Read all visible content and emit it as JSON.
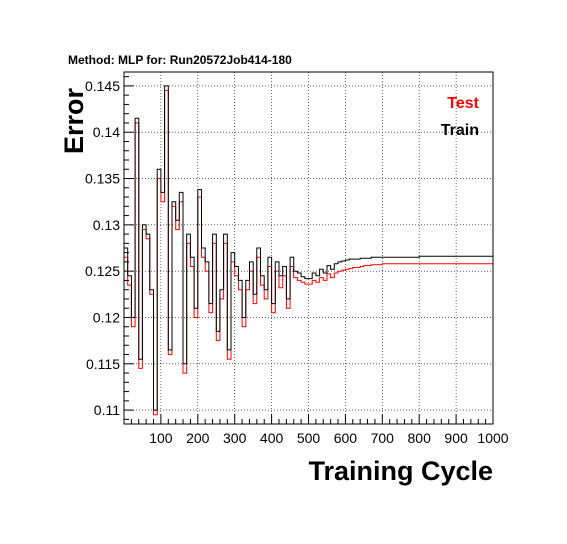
{
  "chart_data": {
    "type": "line",
    "title": "Method: MLP for: Run20572Job414-180",
    "xlabel": "Training Cycle",
    "ylabel": "Error",
    "xlim": [
      0,
      1000
    ],
    "ylim": [
      0.1085,
      0.1465
    ],
    "x_ticks": [
      100,
      200,
      300,
      400,
      500,
      600,
      700,
      800,
      900,
      1000
    ],
    "y_ticks": [
      0.11,
      0.115,
      0.12,
      0.125,
      0.13,
      0.135,
      0.14,
      0.145
    ],
    "grid": true,
    "legend_position": "top-right",
    "series": [
      {
        "name": "Test",
        "color": "#ff0000",
        "x": [
          0,
          10,
          20,
          30,
          40,
          50,
          60,
          70,
          80,
          90,
          100,
          110,
          120,
          130,
          140,
          150,
          160,
          170,
          180,
          190,
          200,
          210,
          220,
          230,
          240,
          250,
          260,
          270,
          280,
          290,
          300,
          310,
          320,
          330,
          340,
          350,
          360,
          370,
          380,
          390,
          400,
          410,
          420,
          430,
          440,
          450,
          460,
          470,
          480,
          490,
          500,
          510,
          520,
          530,
          540,
          550,
          560,
          570,
          580,
          590,
          600,
          610,
          620,
          630,
          640,
          650,
          660,
          670,
          680,
          690,
          700,
          750,
          800,
          850,
          900,
          950,
          1000
        ],
        "y": [
          0.1265,
          0.1235,
          0.119,
          0.141,
          0.1145,
          0.1295,
          0.1285,
          0.1225,
          0.1095,
          0.135,
          0.1325,
          0.1445,
          0.116,
          0.132,
          0.1295,
          0.1325,
          0.114,
          0.128,
          0.1255,
          0.12,
          0.133,
          0.1265,
          0.125,
          0.1205,
          0.128,
          0.1175,
          0.122,
          0.128,
          0.1155,
          0.126,
          0.1245,
          0.123,
          0.119,
          0.123,
          0.125,
          0.1215,
          0.1265,
          0.1235,
          0.122,
          0.1255,
          0.1205,
          0.125,
          0.1232,
          0.1245,
          0.121,
          0.1255,
          0.1243,
          0.124,
          0.1238,
          0.1236,
          0.1236,
          0.124,
          0.1238,
          0.1243,
          0.124,
          0.1247,
          0.1243,
          0.1248,
          0.125,
          0.1251,
          0.1252,
          0.1253,
          0.1254,
          0.1254,
          0.1255,
          0.1256,
          0.1256,
          0.1257,
          0.1257,
          0.1257,
          0.1258,
          0.1258,
          0.1258,
          0.1258,
          0.1258,
          0.1258,
          0.1258
        ]
      },
      {
        "name": "Train",
        "color": "#000000",
        "x": [
          0,
          10,
          20,
          30,
          40,
          50,
          60,
          70,
          80,
          90,
          100,
          110,
          120,
          130,
          140,
          150,
          160,
          170,
          180,
          190,
          200,
          210,
          220,
          230,
          240,
          250,
          260,
          270,
          280,
          290,
          300,
          310,
          320,
          330,
          340,
          350,
          360,
          370,
          380,
          390,
          400,
          410,
          420,
          430,
          440,
          450,
          460,
          470,
          480,
          490,
          500,
          510,
          520,
          530,
          540,
          550,
          560,
          570,
          580,
          590,
          600,
          610,
          620,
          630,
          640,
          650,
          660,
          670,
          680,
          690,
          700,
          750,
          800,
          850,
          900,
          950,
          1000
        ],
        "y": [
          0.1275,
          0.1245,
          0.12,
          0.1415,
          0.1155,
          0.13,
          0.129,
          0.123,
          0.11,
          0.136,
          0.1335,
          0.145,
          0.1165,
          0.1325,
          0.1305,
          0.1335,
          0.115,
          0.129,
          0.1265,
          0.121,
          0.1338,
          0.1275,
          0.126,
          0.1215,
          0.129,
          0.1185,
          0.123,
          0.129,
          0.1165,
          0.127,
          0.1255,
          0.124,
          0.12,
          0.124,
          0.126,
          0.1225,
          0.1275,
          0.1245,
          0.123,
          0.1265,
          0.1215,
          0.126,
          0.1245,
          0.1255,
          0.122,
          0.1265,
          0.125,
          0.1248,
          0.1244,
          0.1242,
          0.1242,
          0.1248,
          0.1245,
          0.1252,
          0.1248,
          0.1256,
          0.1252,
          0.1258,
          0.126,
          0.1261,
          0.1262,
          0.1263,
          0.1263,
          0.1263,
          0.1264,
          0.1264,
          0.1264,
          0.1265,
          0.1265,
          0.1265,
          0.1265,
          0.1265,
          0.1266,
          0.1266,
          0.1266,
          0.1266,
          0.1266
        ]
      }
    ]
  }
}
